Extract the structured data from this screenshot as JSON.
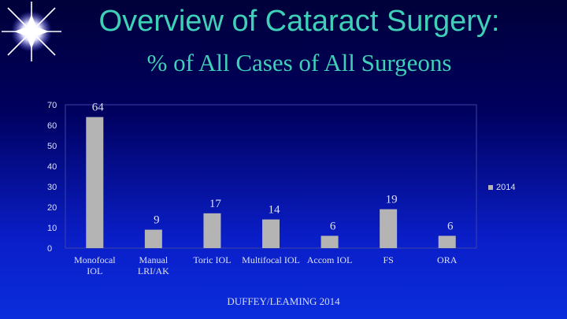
{
  "slide": {
    "title": "Overview of Cataract Surgery:",
    "subtitle": "% of All Cases of All Surgeons",
    "footer": "DUFFEY/LEAMING 2014"
  },
  "colors": {
    "title": "#3fd1b7",
    "bar": "#b4b4b4",
    "label": "#dde2f5"
  },
  "chart_data": {
    "type": "bar",
    "categories": [
      [
        "Monofocal",
        "IOL"
      ],
      [
        "Manual",
        "LRI/AK"
      ],
      [
        "Toric IOL"
      ],
      [
        "Multifocal IOL"
      ],
      [
        "Accom IOL"
      ],
      [
        "FS"
      ],
      [
        "ORA"
      ]
    ],
    "series": [
      {
        "name": "2014",
        "values": [
          64,
          9,
          17,
          14,
          6,
          19,
          6
        ]
      }
    ],
    "ylim": [
      0,
      70
    ],
    "yticks": [
      0,
      10,
      20,
      30,
      40,
      50,
      60,
      70
    ],
    "data_labels": true,
    "legend": "right"
  }
}
